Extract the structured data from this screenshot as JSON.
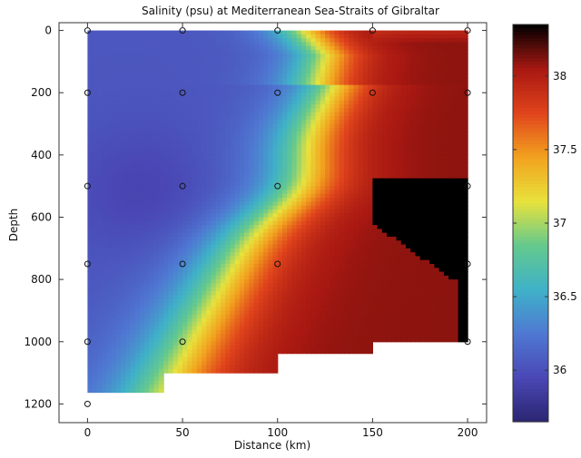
{
  "chart_data": {
    "type": "heatmap",
    "title": "Salinity (psu) at Mediterranean Sea-Straits of Gibraltar",
    "xlabel": "Distance (km)",
    "ylabel": "Depth",
    "xlim": [
      -15,
      210
    ],
    "ylim": [
      1260,
      -25
    ],
    "x_ticks": [
      0,
      50,
      100,
      150,
      200
    ],
    "y_ticks": [
      0,
      200,
      400,
      600,
      800,
      1000,
      1200
    ],
    "colorbar": {
      "range": [
        35.65,
        38.35
      ],
      "ticks": [
        36,
        36.5,
        37,
        37.5,
        38
      ],
      "colors": [
        "#2a2570",
        "#4a47b5",
        "#4f78d2",
        "#3fb1c8",
        "#64c98d",
        "#e8e23c",
        "#f2a21f",
        "#e0441c",
        "#a81812",
        "#000000"
      ]
    },
    "stations": [
      {
        "x": 0,
        "y": 0
      },
      {
        "x": 0,
        "y": 200
      },
      {
        "x": 0,
        "y": 500
      },
      {
        "x": 0,
        "y": 750
      },
      {
        "x": 0,
        "y": 1000
      },
      {
        "x": 0,
        "y": 1200
      },
      {
        "x": 50,
        "y": 0
      },
      {
        "x": 50,
        "y": 200
      },
      {
        "x": 50,
        "y": 500
      },
      {
        "x": 50,
        "y": 750
      },
      {
        "x": 50,
        "y": 1000
      },
      {
        "x": 100,
        "y": 0
      },
      {
        "x": 100,
        "y": 200
      },
      {
        "x": 100,
        "y": 500
      },
      {
        "x": 100,
        "y": 750
      },
      {
        "x": 150,
        "y": 0
      },
      {
        "x": 150,
        "y": 200
      },
      {
        "x": 200,
        "y": 0
      },
      {
        "x": 200,
        "y": 200
      },
      {
        "x": 200,
        "y": 500
      },
      {
        "x": 200,
        "y": 750
      },
      {
        "x": 200,
        "y": 1000
      }
    ],
    "data_domain_outline": [
      [
        0,
        0
      ],
      [
        200,
        0
      ],
      [
        200,
        1000
      ],
      [
        150,
        1000
      ],
      [
        150,
        1040
      ],
      [
        100,
        1040
      ],
      [
        100,
        1100
      ],
      [
        40,
        1100
      ],
      [
        40,
        1160
      ],
      [
        0,
        1160
      ]
    ],
    "field_description": {
      "low_salinity_zone": {
        "value": 36.0,
        "region": "west, upper layers"
      },
      "high_salinity_zone": {
        "value": 38.1,
        "region": "east, deep layers"
      },
      "max_core": {
        "value": 38.4,
        "region": "x 150-200, depth 480-1000"
      }
    }
  }
}
